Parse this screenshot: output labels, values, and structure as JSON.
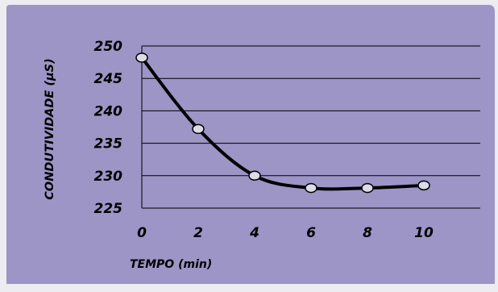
{
  "chart_data": {
    "type": "line",
    "title": "",
    "xlabel": "TEMPO (min)",
    "ylabel": "CONDUTIVIDADE (µS)",
    "x": [
      0,
      2,
      4,
      6,
      8,
      10
    ],
    "xticks": [
      "0",
      "2",
      "4",
      "6",
      "8",
      "10"
    ],
    "xlim": [
      0,
      12
    ],
    "ylim": [
      225,
      250
    ],
    "yticks": [
      "250",
      "245",
      "240",
      "235",
      "230",
      "225"
    ],
    "series": [
      {
        "values": [
          248.2,
          237.2,
          230.0,
          228.1,
          228.1,
          228.5
        ]
      }
    ],
    "grid": "horizontal",
    "smooth": true,
    "marker": "circle",
    "colors": {
      "background": "#9c95c6",
      "line": "#000000",
      "marker_fill": "#dcdce8",
      "grid": "#000000",
      "text": "#000000",
      "page": "#ececf1"
    }
  }
}
